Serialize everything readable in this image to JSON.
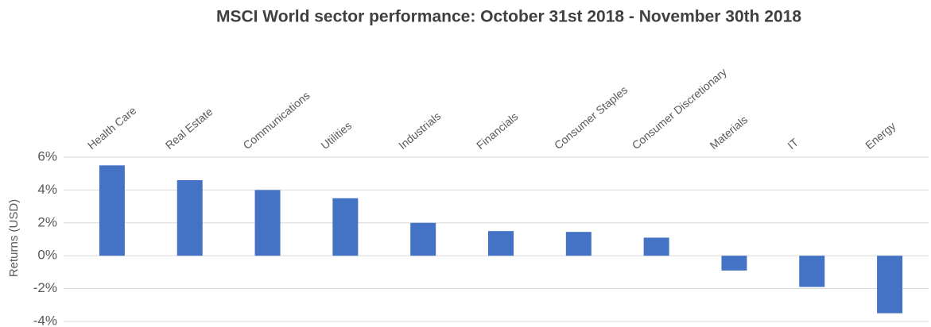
{
  "chart_data": {
    "type": "bar",
    "title": "MSCI World sector performance: October 31st 2018 - November 30th 2018",
    "y_label": "Returns (USD)",
    "categories": [
      "Health Care",
      "Real Estate",
      "Communications",
      "Utilities",
      "Industrials",
      "Financials",
      "Consumer Staples",
      "Consumer Discretionary",
      "Materials",
      "IT",
      "Energy"
    ],
    "values": [
      5.5,
      4.6,
      4.0,
      3.5,
      2.0,
      1.5,
      1.45,
      1.1,
      -0.9,
      -1.9,
      -3.5
    ],
    "color": "#4472c4",
    "ylim": [
      -4,
      6
    ],
    "yticks": [
      {
        "value": -4,
        "label": "-4%"
      },
      {
        "value": -2,
        "label": "-2%"
      },
      {
        "value": 0,
        "label": "0%"
      },
      {
        "value": 2,
        "label": "2%"
      },
      {
        "value": 4,
        "label": "4%"
      },
      {
        "value": 6,
        "label": "6%"
      }
    ],
    "grid": true
  }
}
